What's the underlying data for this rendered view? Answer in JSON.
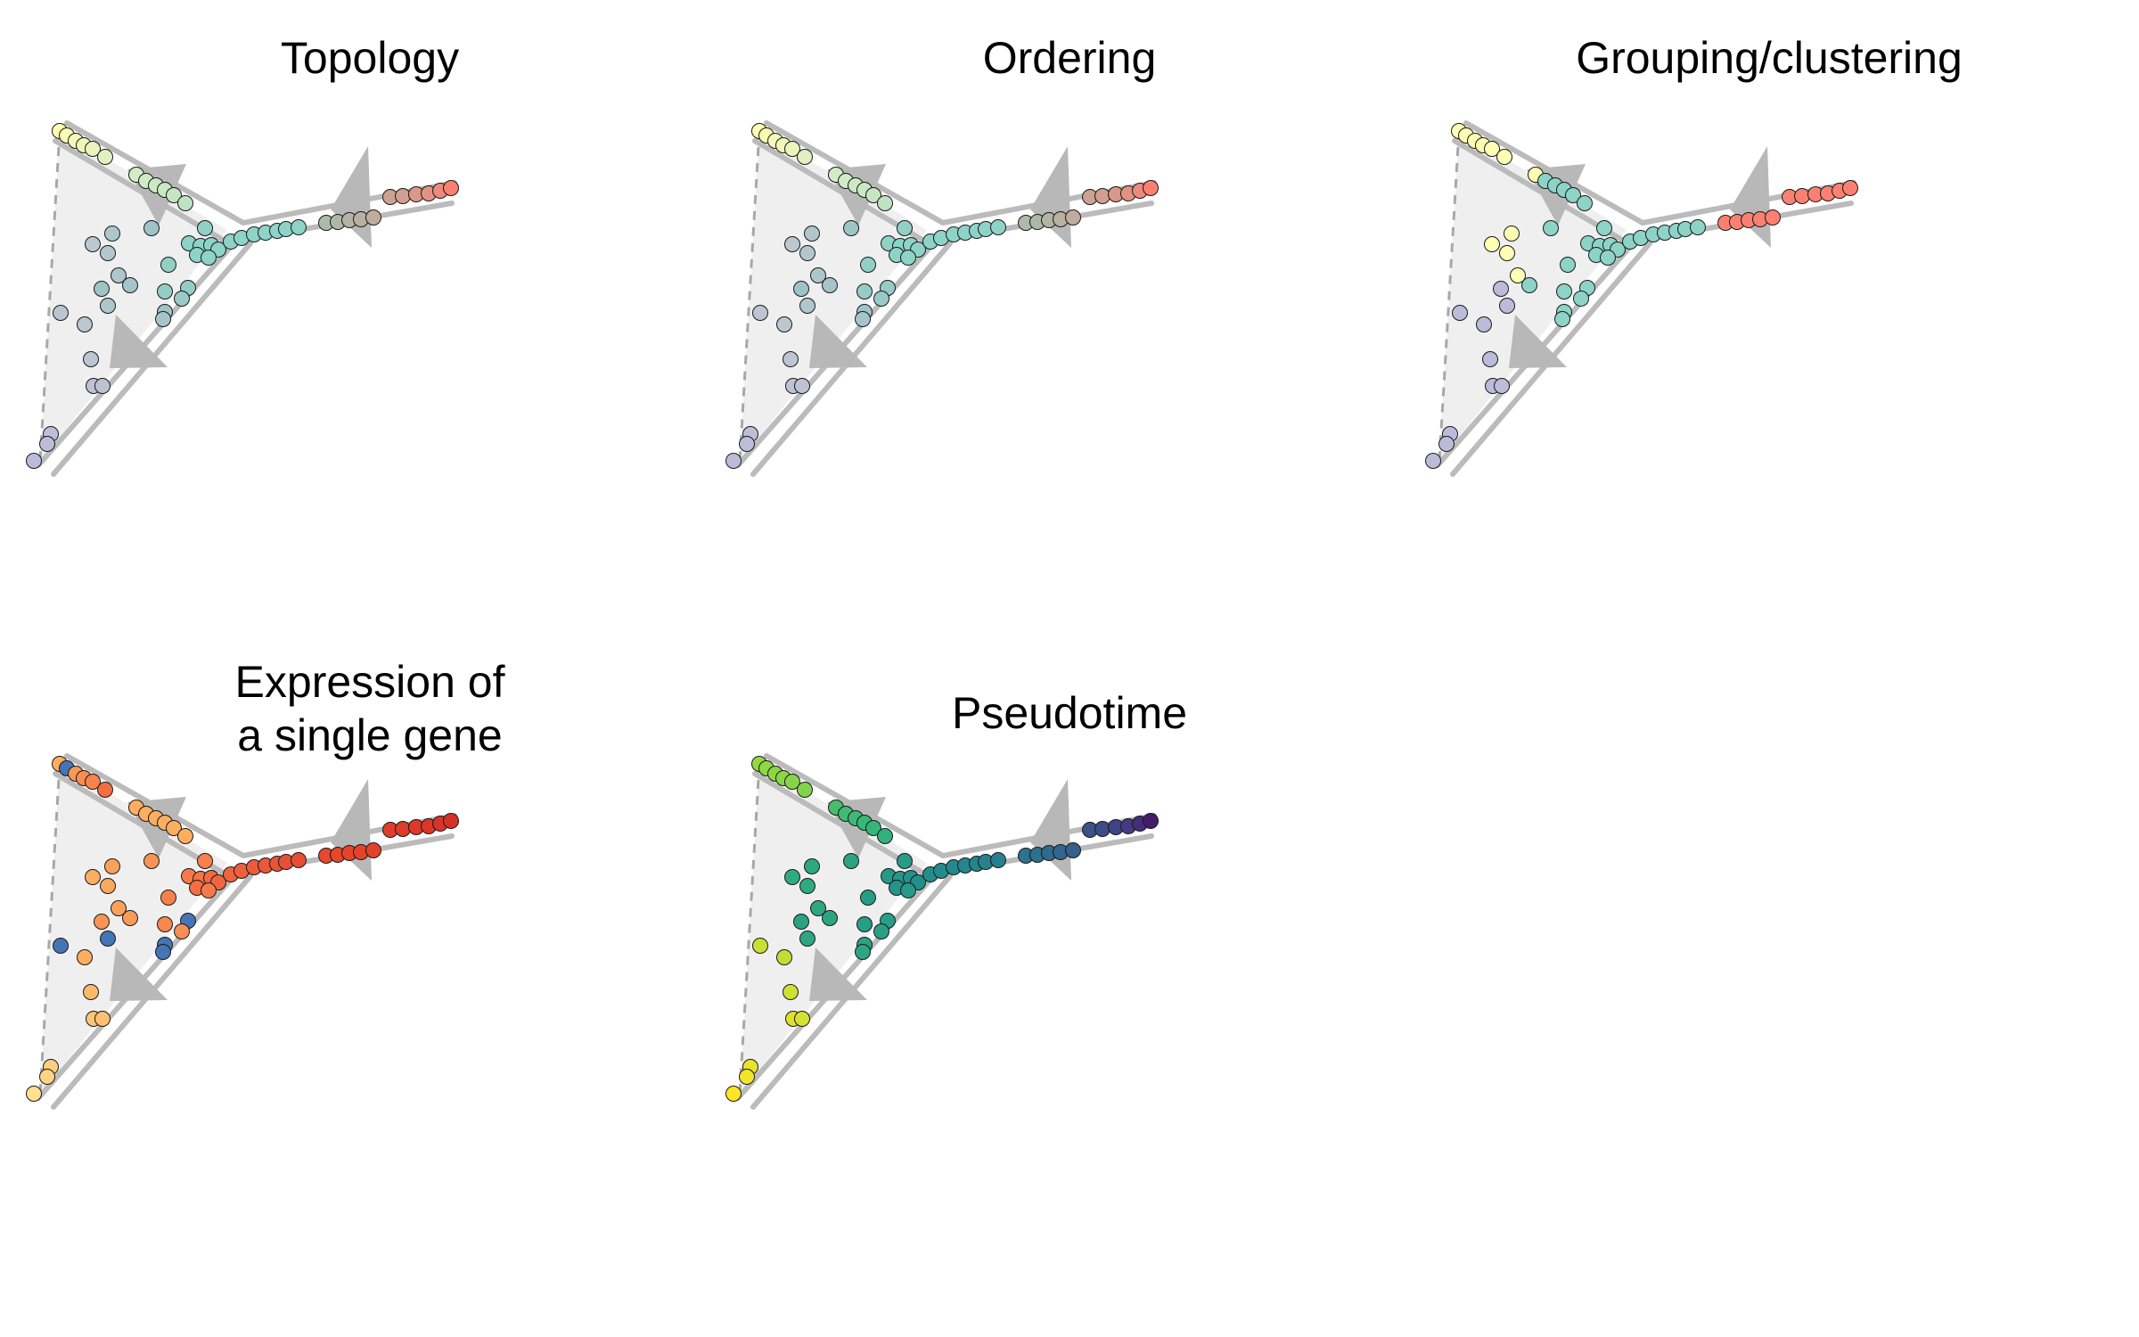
{
  "panels": [
    {
      "title": "Topology",
      "scheme": "topology"
    },
    {
      "title": "Ordering",
      "scheme": "ordering"
    },
    {
      "title": "Grouping/clustering",
      "scheme": "grouping"
    },
    {
      "title": "Expression of\na single gene",
      "scheme": "expression"
    },
    {
      "title": "Pseudotime",
      "scheme": "pseudotime"
    }
  ],
  "colors": {
    "track": "#bbbbbb",
    "arrow": "#b8b8b8",
    "shade": "#efefef",
    "dashed": "#a8a8a8",
    "cluster_yellow": "#ffffb3",
    "cluster_teal": "#8dd3c7",
    "cluster_red": "#fb8072",
    "cluster_lilac": "#bebada",
    "expression_low": "#4575b4",
    "expression_mid": "#fdae61",
    "expression_high": "#d73027",
    "pseudotime_start": "#fde725",
    "pseudotime_end": "#440154"
  }
}
